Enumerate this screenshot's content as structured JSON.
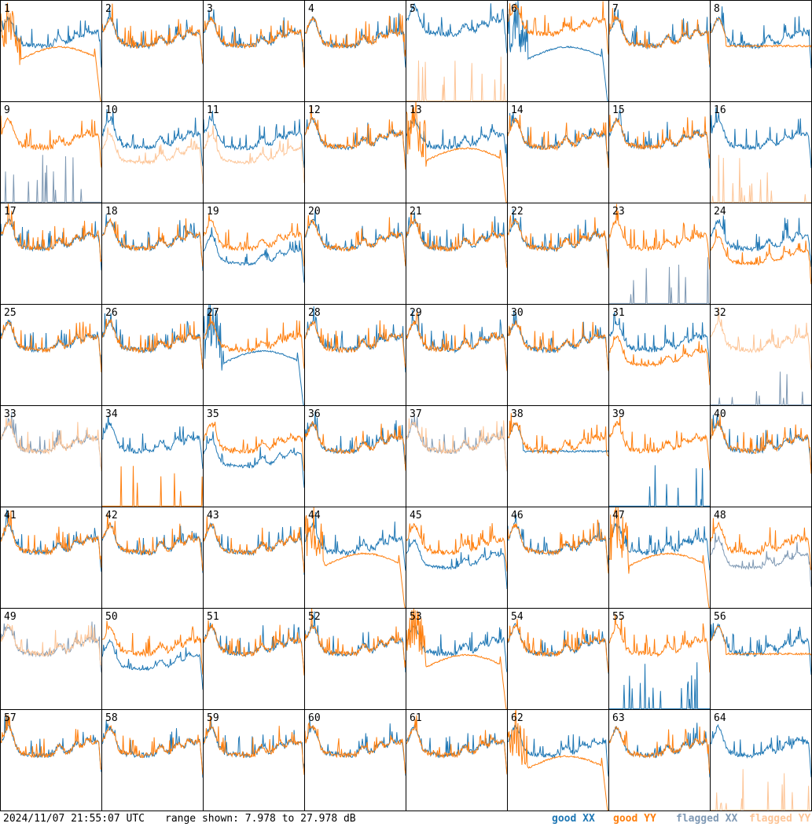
{
  "footer": {
    "timestamp": "2024/11/07 21:55:07 UTC",
    "range_text": "range shown: 7.978 to 27.978 dB"
  },
  "legend": [
    {
      "label": "good XX",
      "color": "#1f77b4"
    },
    {
      "label": "good YY",
      "color": "#ff7f0e"
    },
    {
      "label": "flagged XX",
      "color": "#7f99b4"
    },
    {
      "label": "flagged YY",
      "color": "#fdc597"
    }
  ],
  "colors": {
    "good_xx": "#1f77b4",
    "good_yy": "#ff7f0e",
    "flagged_xx": "#7f99b4",
    "flagged_yy": "#fdc597",
    "grid": "#000000"
  },
  "chart_data": {
    "type": "line",
    "title": "",
    "xlabel": "",
    "ylabel": "",
    "ylim": [
      7.978,
      27.978
    ],
    "grid": true,
    "rows": 8,
    "cols": 8,
    "antennas": [
      {
        "n": 1,
        "xx": "good",
        "yy": "good",
        "xx_shape": "normal",
        "yy_shape": "droop"
      },
      {
        "n": 2,
        "xx": "good",
        "yy": "good",
        "xx_shape": "normal",
        "yy_shape": "normal"
      },
      {
        "n": 3,
        "xx": "good",
        "yy": "good",
        "xx_shape": "normal",
        "yy_shape": "normal"
      },
      {
        "n": 4,
        "xx": "good",
        "yy": "good",
        "xx_shape": "normal",
        "yy_shape": "normal"
      },
      {
        "n": 5,
        "xx": "good",
        "yy": "flagged",
        "xx_shape": "high",
        "yy_shape": "spikes"
      },
      {
        "n": 6,
        "xx": "good",
        "yy": "good",
        "xx_shape": "droop",
        "yy_shape": "high"
      },
      {
        "n": 7,
        "xx": "good",
        "yy": "good",
        "xx_shape": "normal",
        "yy_shape": "normal"
      },
      {
        "n": 8,
        "xx": "good",
        "yy": "good",
        "xx_shape": "normal",
        "yy_shape": "flat"
      },
      {
        "n": 9,
        "xx": "flagged",
        "yy": "good",
        "xx_shape": "spikes",
        "yy_shape": "normal"
      },
      {
        "n": 10,
        "xx": "good",
        "yy": "flagged",
        "xx_shape": "normal",
        "yy_shape": "low"
      },
      {
        "n": 11,
        "xx": "good",
        "yy": "flagged",
        "xx_shape": "normal",
        "yy_shape": "low"
      },
      {
        "n": 12,
        "xx": "good",
        "yy": "good",
        "xx_shape": "normal",
        "yy_shape": "normal"
      },
      {
        "n": 13,
        "xx": "good",
        "yy": "good",
        "xx_shape": "normal",
        "yy_shape": "droop"
      },
      {
        "n": 14,
        "xx": "good",
        "yy": "good",
        "xx_shape": "normal",
        "yy_shape": "normal"
      },
      {
        "n": 15,
        "xx": "good",
        "yy": "good",
        "xx_shape": "normal",
        "yy_shape": "normal"
      },
      {
        "n": 16,
        "xx": "good",
        "yy": "flagged",
        "xx_shape": "normal",
        "yy_shape": "spikes"
      },
      {
        "n": 17,
        "xx": "good",
        "yy": "good",
        "xx_shape": "normal",
        "yy_shape": "normal"
      },
      {
        "n": 18,
        "xx": "good",
        "yy": "good",
        "xx_shape": "normal",
        "yy_shape": "normal"
      },
      {
        "n": 19,
        "xx": "good",
        "yy": "good",
        "xx_shape": "low",
        "yy_shape": "normal"
      },
      {
        "n": 20,
        "xx": "good",
        "yy": "good",
        "xx_shape": "normal",
        "yy_shape": "normal"
      },
      {
        "n": 21,
        "xx": "good",
        "yy": "good",
        "xx_shape": "normal",
        "yy_shape": "normal"
      },
      {
        "n": 22,
        "xx": "good",
        "yy": "good",
        "xx_shape": "normal",
        "yy_shape": "normal"
      },
      {
        "n": 23,
        "xx": "flagged",
        "yy": "good",
        "xx_shape": "spikes",
        "yy_shape": "normal"
      },
      {
        "n": 24,
        "xx": "good",
        "yy": "good",
        "xx_shape": "normal",
        "yy_shape": "low"
      },
      {
        "n": 25,
        "xx": "good",
        "yy": "good",
        "xx_shape": "normal",
        "yy_shape": "normal"
      },
      {
        "n": 26,
        "xx": "good",
        "yy": "good",
        "xx_shape": "normal",
        "yy_shape": "normal"
      },
      {
        "n": 27,
        "xx": "good",
        "yy": "good",
        "xx_shape": "droop",
        "yy_shape": "normal"
      },
      {
        "n": 28,
        "xx": "good",
        "yy": "good",
        "xx_shape": "normal",
        "yy_shape": "normal"
      },
      {
        "n": 29,
        "xx": "good",
        "yy": "good",
        "xx_shape": "normal",
        "yy_shape": "normal"
      },
      {
        "n": 30,
        "xx": "good",
        "yy": "good",
        "xx_shape": "normal",
        "yy_shape": "normal"
      },
      {
        "n": 31,
        "xx": "good",
        "yy": "good",
        "xx_shape": "normal",
        "yy_shape": "low"
      },
      {
        "n": 32,
        "xx": "flagged",
        "yy": "flagged",
        "xx_shape": "spikes",
        "yy_shape": "normal"
      },
      {
        "n": 33,
        "xx": "flagged",
        "yy": "flagged",
        "xx_shape": "normal",
        "yy_shape": "normal"
      },
      {
        "n": 34,
        "xx": "good",
        "yy": "good",
        "xx_shape": "normal",
        "yy_shape": "spikes"
      },
      {
        "n": 35,
        "xx": "good",
        "yy": "good",
        "xx_shape": "low",
        "yy_shape": "normal"
      },
      {
        "n": 36,
        "xx": "good",
        "yy": "good",
        "xx_shape": "normal",
        "yy_shape": "normal"
      },
      {
        "n": 37,
        "xx": "flagged",
        "yy": "flagged",
        "xx_shape": "normal",
        "yy_shape": "normal"
      },
      {
        "n": 38,
        "xx": "good",
        "yy": "good",
        "xx_shape": "flat",
        "yy_shape": "normal"
      },
      {
        "n": 39,
        "xx": "good",
        "yy": "good",
        "xx_shape": "spikes",
        "yy_shape": "normal"
      },
      {
        "n": 40,
        "xx": "good",
        "yy": "good",
        "xx_shape": "normal",
        "yy_shape": "normal"
      },
      {
        "n": 41,
        "xx": "good",
        "yy": "good",
        "xx_shape": "normal",
        "yy_shape": "normal"
      },
      {
        "n": 42,
        "xx": "good",
        "yy": "good",
        "xx_shape": "normal",
        "yy_shape": "normal"
      },
      {
        "n": 43,
        "xx": "good",
        "yy": "good",
        "xx_shape": "normal",
        "yy_shape": "normal"
      },
      {
        "n": 44,
        "xx": "good",
        "yy": "good",
        "xx_shape": "normal",
        "yy_shape": "droop"
      },
      {
        "n": 45,
        "xx": "good",
        "yy": "good",
        "xx_shape": "low",
        "yy_shape": "normal"
      },
      {
        "n": 46,
        "xx": "good",
        "yy": "good",
        "xx_shape": "normal",
        "yy_shape": "normal"
      },
      {
        "n": 47,
        "xx": "good",
        "yy": "good",
        "xx_shape": "normal",
        "yy_shape": "droop"
      },
      {
        "n": 48,
        "xx": "flagged",
        "yy": "good",
        "xx_shape": "low",
        "yy_shape": "normal"
      },
      {
        "n": 49,
        "xx": "flagged",
        "yy": "flagged",
        "xx_shape": "normal",
        "yy_shape": "normal"
      },
      {
        "n": 50,
        "xx": "good",
        "yy": "good",
        "xx_shape": "low",
        "yy_shape": "normal"
      },
      {
        "n": 51,
        "xx": "good",
        "yy": "good",
        "xx_shape": "normal",
        "yy_shape": "normal"
      },
      {
        "n": 52,
        "xx": "good",
        "yy": "good",
        "xx_shape": "normal",
        "yy_shape": "normal"
      },
      {
        "n": 53,
        "xx": "good",
        "yy": "good",
        "xx_shape": "normal",
        "yy_shape": "droop"
      },
      {
        "n": 54,
        "xx": "good",
        "yy": "good",
        "xx_shape": "normal",
        "yy_shape": "normal"
      },
      {
        "n": 55,
        "xx": "good",
        "yy": "good",
        "xx_shape": "spikes",
        "yy_shape": "normal"
      },
      {
        "n": 56,
        "xx": "good",
        "yy": "good",
        "xx_shape": "normal",
        "yy_shape": "flat"
      },
      {
        "n": 57,
        "xx": "good",
        "yy": "good",
        "xx_shape": "normal",
        "yy_shape": "normal"
      },
      {
        "n": 58,
        "xx": "good",
        "yy": "good",
        "xx_shape": "normal",
        "yy_shape": "normal"
      },
      {
        "n": 59,
        "xx": "good",
        "yy": "good",
        "xx_shape": "normal",
        "yy_shape": "normal"
      },
      {
        "n": 60,
        "xx": "good",
        "yy": "good",
        "xx_shape": "normal",
        "yy_shape": "normal"
      },
      {
        "n": 61,
        "xx": "good",
        "yy": "good",
        "xx_shape": "normal",
        "yy_shape": "normal"
      },
      {
        "n": 62,
        "xx": "good",
        "yy": "good",
        "xx_shape": "normal",
        "yy_shape": "droop"
      },
      {
        "n": 63,
        "xx": "good",
        "yy": "good",
        "xx_shape": "normal",
        "yy_shape": "normal"
      },
      {
        "n": 64,
        "xx": "good",
        "yy": "flagged",
        "xx_shape": "normal",
        "yy_shape": "spikes"
      }
    ]
  }
}
